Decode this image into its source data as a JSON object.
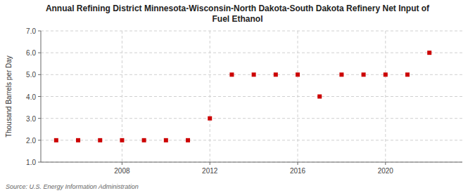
{
  "chart_data": {
    "type": "scatter",
    "title": "Annual Refining District Minnesota-Wisconsin-North Dakota-South Dakota Refinery Net Input of\nFuel Ethanol",
    "ylabel": "Thousand Barrels per Day",
    "source": "Source: U.S. Energy Information Administration",
    "x": [
      2005,
      2006,
      2007,
      2008,
      2009,
      2010,
      2011,
      2012,
      2013,
      2014,
      2015,
      2016,
      2017,
      2018,
      2019,
      2020,
      2021,
      2022
    ],
    "values": [
      2.0,
      2.0,
      2.0,
      2.0,
      2.0,
      2.0,
      2.0,
      3.0,
      5.0,
      5.0,
      5.0,
      5.0,
      4.0,
      5.0,
      5.0,
      5.0,
      5.0,
      6.0
    ],
    "color": "#cc0000",
    "marker": "square",
    "xlim": [
      2004.3,
      2023.5
    ],
    "xticks": [
      2008,
      2012,
      2016,
      2020
    ],
    "ylim": [
      1.0,
      7.0
    ],
    "yticks": [
      {
        "value": 1.0,
        "label": "1.0"
      },
      {
        "value": 2.0,
        "label": "2.0"
      },
      {
        "value": 3.0,
        "label": "3.0"
      },
      {
        "value": 4.0,
        "label": "4.0"
      },
      {
        "value": 5.0,
        "label": "5.0"
      },
      {
        "value": 6.0,
        "label": "6.0"
      },
      {
        "value": 7.0,
        "label": "7.0"
      }
    ],
    "grid": true
  }
}
